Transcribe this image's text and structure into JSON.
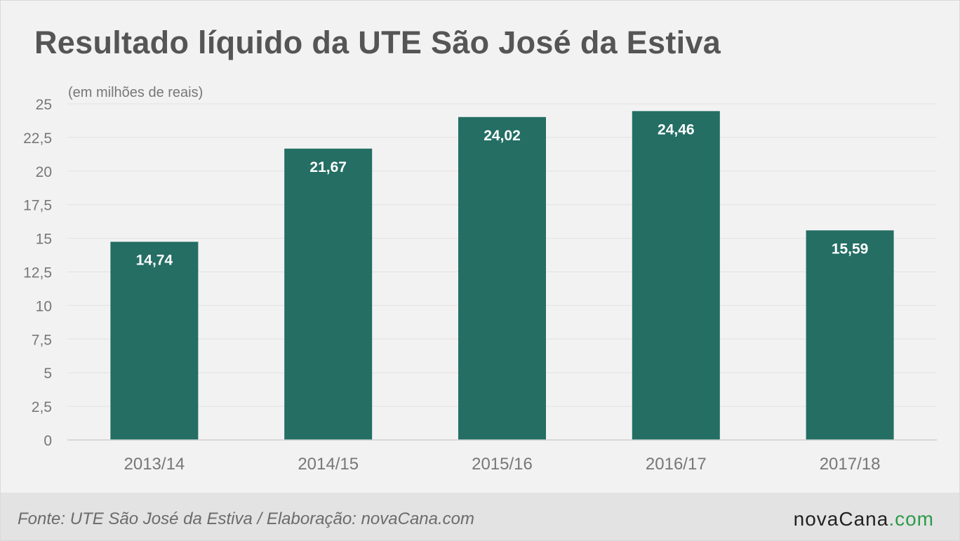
{
  "header": {
    "title": "Resultado líquido da UTE São José da Estiva",
    "subtitle": "(em milhões de reais)"
  },
  "chart_data": {
    "type": "bar",
    "categories": [
      "2013/14",
      "2014/15",
      "2015/16",
      "2016/17",
      "2017/18"
    ],
    "values": [
      14.74,
      21.67,
      24.02,
      24.46,
      15.59
    ],
    "value_labels": [
      "14,74",
      "21,67",
      "24,02",
      "24,46",
      "15,59"
    ],
    "ylim": [
      0,
      25
    ],
    "yticks": [
      0,
      2.5,
      5,
      7.5,
      10,
      12.5,
      15,
      17.5,
      20,
      22.5,
      25
    ],
    "ytick_labels": [
      "0",
      "2,5",
      "5",
      "7,5",
      "10",
      "12,5",
      "15",
      "17,5",
      "20",
      "22,5",
      "25"
    ],
    "grid": true,
    "bar_color": "#246e64",
    "grid_color": "#e2e2e2",
    "label_color": "#ffffff"
  },
  "footer": {
    "source": "Fonte: UTE São José da Estiva / Elaboração: novaCana.com",
    "logo_part1": "nova",
    "logo_part2": "Cana",
    "logo_part3": ".com",
    "logo_color_dark": "#222222",
    "logo_color_green": "#2e9b4b"
  }
}
